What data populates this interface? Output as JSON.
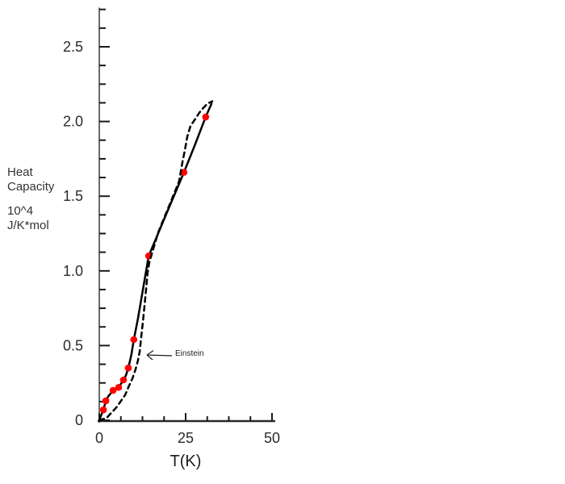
{
  "chart_data": {
    "type": "line",
    "title": "",
    "xlabel": "T(K)",
    "ylabel_lines": [
      "Heat",
      "Capacity",
      "10^4",
      "J/K*mol"
    ],
    "xlim": [
      0,
      50
    ],
    "ylim": [
      0,
      2.76
    ],
    "grid": false,
    "legend": "none",
    "x_axis": {
      "minor_step": 6.25,
      "major_ticks": [
        {
          "value": 0,
          "label": "0"
        },
        {
          "value": 25,
          "label": "25"
        },
        {
          "value": 50,
          "label": "50"
        }
      ]
    },
    "y_axis": {
      "minor_step": 0.125,
      "major_ticks": [
        {
          "value": 0,
          "label": "0"
        },
        {
          "value": 0.5,
          "label": "0.5"
        },
        {
          "value": 1,
          "label": "1.0"
        },
        {
          "value": 1.5,
          "label": "1.5"
        },
        {
          "value": 2,
          "label": "2.0"
        },
        {
          "value": 2.5,
          "label": "2.5"
        }
      ]
    },
    "annotation": {
      "text": "Einstein",
      "arrow_tip": [
        13.8,
        0.437
      ],
      "arrow_tail": [
        21.0,
        0.432
      ]
    },
    "colors": {
      "curve": "#000000",
      "marker": "#ff0000",
      "y_axis_line": "#6a6a6a",
      "x_axis_line": "#2a2a2a",
      "tick": "#1a1a1a",
      "label": "#2b2b2b"
    },
    "series": [
      {
        "name": "measured-solid",
        "label": "",
        "line_style": "solid",
        "color": "#000000",
        "marker": "circle",
        "marker_color": "#ff0000",
        "points": [
          [
            0,
            0
          ],
          [
            0.5,
            0.03
          ],
          [
            1.2,
            0.07
          ],
          [
            1.9,
            0.13
          ],
          [
            2.6,
            0.16
          ],
          [
            3.3,
            0.18
          ],
          [
            4.0,
            0.2
          ],
          [
            4.8,
            0.21
          ],
          [
            5.6,
            0.22
          ],
          [
            6.3,
            0.245
          ],
          [
            7.0,
            0.27
          ],
          [
            7.7,
            0.3
          ],
          [
            8.4,
            0.35
          ],
          [
            9.3,
            0.44
          ],
          [
            10.0,
            0.54
          ],
          [
            11.2,
            0.68
          ],
          [
            12.6,
            0.87
          ],
          [
            14.3,
            1.1
          ],
          [
            19.4,
            1.38
          ],
          [
            24.5,
            1.66
          ],
          [
            27.8,
            1.85
          ],
          [
            30.8,
            2.03
          ],
          [
            32.5,
            2.12
          ]
        ],
        "marker_points": [
          [
            1.2,
            0.07
          ],
          [
            1.9,
            0.13
          ],
          [
            4.0,
            0.2
          ],
          [
            5.6,
            0.22
          ],
          [
            7.0,
            0.27
          ],
          [
            8.4,
            0.35
          ],
          [
            10.0,
            0.54
          ],
          [
            14.3,
            1.1
          ],
          [
            24.5,
            1.66
          ],
          [
            30.8,
            2.03
          ]
        ]
      },
      {
        "name": "einstein-dashed",
        "label": "Einstein",
        "line_style": "dashed",
        "color": "#000000",
        "marker": "none",
        "points": [
          [
            0,
            0
          ],
          [
            2.1,
            0.015
          ],
          [
            3.5,
            0.05
          ],
          [
            4.9,
            0.085
          ],
          [
            6.3,
            0.13
          ],
          [
            7.5,
            0.17
          ],
          [
            8.6,
            0.23
          ],
          [
            9.6,
            0.28
          ],
          [
            10.5,
            0.34
          ],
          [
            11.2,
            0.4
          ],
          [
            11.7,
            0.46
          ],
          [
            12.1,
            0.55
          ],
          [
            12.6,
            0.65
          ],
          [
            13.1,
            0.77
          ],
          [
            13.6,
            0.89
          ],
          [
            14.0,
            0.99
          ],
          [
            14.5,
            1.06
          ],
          [
            15.8,
            1.16
          ],
          [
            17.1,
            1.26
          ],
          [
            18.7,
            1.35
          ],
          [
            20.3,
            1.44
          ],
          [
            21.7,
            1.52
          ],
          [
            23.1,
            1.6
          ],
          [
            24.1,
            1.73
          ],
          [
            24.8,
            1.81
          ],
          [
            25.5,
            1.9
          ],
          [
            26.4,
            1.97
          ],
          [
            27.6,
            2.01
          ],
          [
            29.0,
            2.06
          ],
          [
            30.1,
            2.09
          ],
          [
            31.3,
            2.12
          ],
          [
            32.7,
            2.135
          ]
        ]
      }
    ]
  }
}
